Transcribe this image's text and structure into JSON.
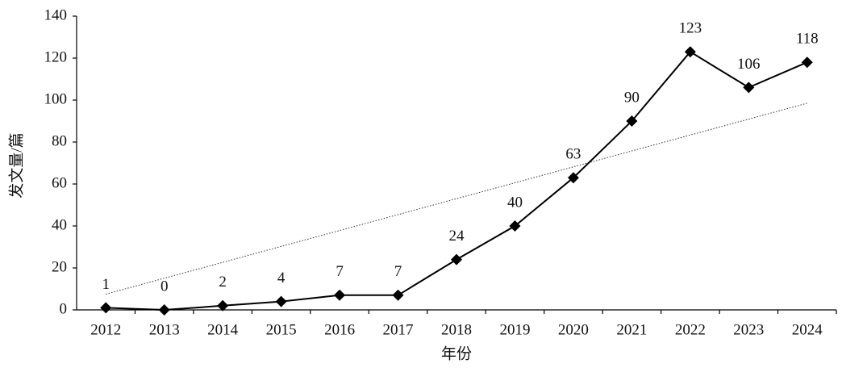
{
  "chart_data": {
    "type": "line",
    "x_label": "年份",
    "y_label": "发文量/篇",
    "categories": [
      "2012",
      "2013",
      "2014",
      "2015",
      "2016",
      "2017",
      "2018",
      "2019",
      "2020",
      "2021",
      "2022",
      "2023",
      "2024"
    ],
    "values": [
      1,
      0,
      2,
      4,
      7,
      7,
      24,
      40,
      63,
      90,
      123,
      106,
      118
    ],
    "color": "#000000",
    "trend_values": [
      7.5,
      98.5
    ],
    "ylim": [
      0,
      140
    ],
    "yticks": [
      0,
      20,
      40,
      60,
      80,
      100,
      120,
      140
    ]
  }
}
